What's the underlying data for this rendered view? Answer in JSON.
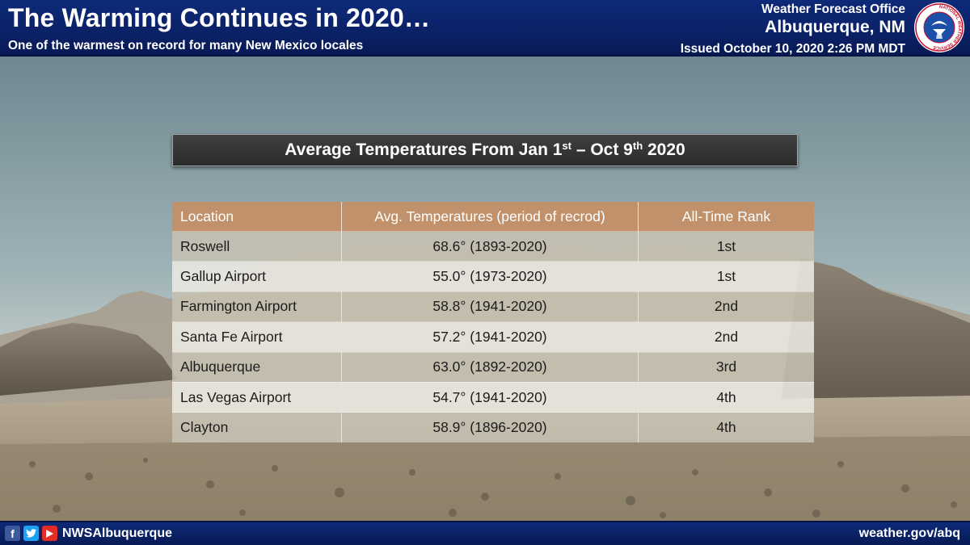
{
  "header": {
    "title": "The Warming Continues in 2020…",
    "subtitle": "One of the warmest on record for many New Mexico locales",
    "office_line1": "Weather Forecast Office",
    "office_line2": "Albuquerque, NM",
    "issued": "Issued October 10, 2020 2:26 PM MDT",
    "logo_icon": "nws-seal-icon",
    "logo_text": "NATIONAL WEATHER SERVICE"
  },
  "table": {
    "title_prefix": "Average Temperatures From Jan 1",
    "title_sup1": "st",
    "title_middle": " – Oct 9",
    "title_sup2": "th",
    "title_suffix": " 2020",
    "columns": [
      "Location",
      "Avg. Temperatures (period of recrod)",
      "All-Time Rank"
    ],
    "rows": [
      {
        "location": "Roswell",
        "temp": "68.6°  (1893-2020)",
        "rank": "1st"
      },
      {
        "location": "Gallup Airport",
        "temp": "55.0°  (1973-2020)",
        "rank": "1st"
      },
      {
        "location": "Farmington Airport",
        "temp": "58.8°  (1941-2020)",
        "rank": "2nd"
      },
      {
        "location": "Santa Fe Airport",
        "temp": "57.2°  (1941-2020)",
        "rank": "2nd"
      },
      {
        "location": "Albuquerque",
        "temp": "63.0°  (1892-2020)",
        "rank": "3rd"
      },
      {
        "location": "Las Vegas Airport",
        "temp": "54.7°  (1941-2020)",
        "rank": "4th"
      },
      {
        "location": "Clayton",
        "temp": "58.9°  (1896-2020)",
        "rank": "4th"
      }
    ]
  },
  "footer": {
    "icons": [
      "facebook-icon",
      "twitter-icon",
      "youtube-icon"
    ],
    "handle": "NWSAlbuquerque",
    "website": "weather.gov/abq"
  },
  "colors": {
    "header_bg": "#0b2167",
    "table_header_bg": "#c0916a",
    "title_bar_bg": "#333535"
  }
}
